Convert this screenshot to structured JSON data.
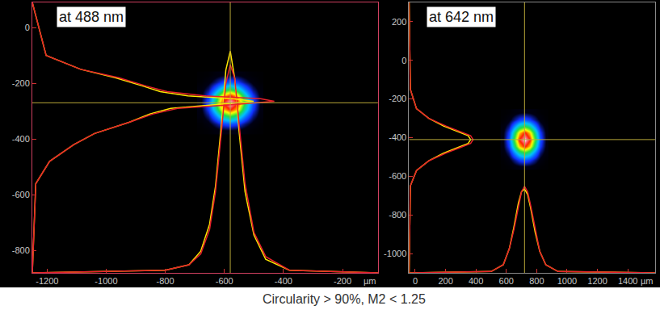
{
  "chart_data": [
    {
      "type": "beam_profile",
      "title": "at 488 nm",
      "xlabel": "µm",
      "xlim": [
        -1250,
        -80
      ],
      "ylim": [
        -880,
        90
      ],
      "xticks": [
        -1200,
        -1000,
        -800,
        -600,
        -400,
        -200
      ],
      "yticks": [
        0,
        -200,
        -400,
        -600,
        -800
      ],
      "grid": false,
      "center": [
        -580,
        -270
      ],
      "spot": {
        "x": [
          -680,
          -655,
          -630,
          -605,
          -580,
          -555,
          -530,
          -505,
          -480
        ],
        "y": [
          -370,
          -345,
          -320,
          -295,
          -270,
          -245,
          -220,
          -195,
          -170
        ],
        "zlim": [
          0,
          100
        ],
        "z": [
          [
            1,
            2,
            5,
            7,
            8,
            7,
            5,
            2,
            1
          ],
          [
            2,
            6,
            13,
            21,
            25,
            21,
            13,
            6,
            2
          ],
          [
            5,
            13,
            29,
            46,
            54,
            46,
            29,
            13,
            5
          ],
          [
            7,
            21,
            46,
            73,
            86,
            73,
            46,
            21,
            7
          ],
          [
            8,
            25,
            54,
            86,
            100,
            86,
            54,
            25,
            8
          ],
          [
            7,
            21,
            46,
            73,
            86,
            73,
            46,
            21,
            7
          ],
          [
            5,
            13,
            29,
            46,
            54,
            46,
            29,
            13,
            5
          ],
          [
            2,
            6,
            13,
            21,
            25,
            21,
            13,
            6,
            2
          ],
          [
            1,
            2,
            5,
            7,
            8,
            7,
            5,
            2,
            1
          ]
        ]
      },
      "profile_x": {
        "intensity_lim": [
          0,
          100
        ],
        "x": [
          -1250,
          -800,
          -720,
          -680,
          -650,
          -630,
          -610,
          -595,
          -580,
          -565,
          -550,
          -530,
          -500,
          -460,
          -380,
          -80
        ],
        "series": [
          {
            "color": "#ffe600",
            "values": [
              0,
              1,
              3,
              8,
              18,
              32,
              55,
              75,
              82,
              72,
              52,
              30,
              14,
              5,
              1,
              0
            ]
          },
          {
            "color": "#e8202a",
            "values": [
              0,
              1,
              3,
              7,
              16,
              30,
              52,
              70,
              77,
              72,
              55,
              33,
              15,
              6,
              1,
              0
            ]
          }
        ]
      },
      "profile_y": {
        "intensity_lim": [
          0,
          100
        ],
        "y": [
          90,
          -100,
          -150,
          -180,
          -210,
          -230,
          -245,
          -255,
          -265,
          -275,
          -290,
          -310,
          -340,
          -380,
          -420,
          -480,
          -560,
          -880
        ],
        "series": [
          {
            "color": "#ffe600",
            "values": [
              0,
              4,
              14,
              24,
              32,
              37,
              45,
              58,
              64,
              55,
              40,
              34,
              28,
              18,
              12,
              5,
              1,
              0
            ]
          },
          {
            "color": "#e8202a",
            "values": [
              0,
              4,
              14,
              25,
              33,
              39,
              50,
              66,
              70,
              60,
              42,
              35,
              28,
              18,
              12,
              5,
              1,
              0
            ]
          }
        ]
      }
    },
    {
      "type": "beam_profile",
      "title": "at 642 nm",
      "xlabel": "µm",
      "xlim": [
        -40,
        1580
      ],
      "ylim": [
        -1100,
        300
      ],
      "xticks": [
        0,
        200,
        400,
        600,
        800,
        1000,
        1200,
        1400
      ],
      "yticks": [
        200,
        0,
        -200,
        -400,
        -600,
        -800,
        -1000
      ],
      "grid": false,
      "center": [
        720,
        -410
      ],
      "spot": {
        "x": [
          580,
          615,
          650,
          685,
          720,
          755,
          790,
          825,
          860
        ],
        "y": [
          -550,
          -515,
          -480,
          -445,
          -410,
          -375,
          -340,
          -305,
          -270
        ],
        "zlim": [
          0,
          100
        ],
        "z": [
          [
            1,
            2,
            5,
            7,
            8,
            7,
            5,
            2,
            1
          ],
          [
            2,
            6,
            13,
            21,
            25,
            21,
            13,
            6,
            2
          ],
          [
            5,
            13,
            29,
            46,
            54,
            46,
            29,
            13,
            5
          ],
          [
            7,
            21,
            46,
            73,
            86,
            73,
            46,
            21,
            7
          ],
          [
            8,
            25,
            54,
            86,
            100,
            86,
            54,
            25,
            8
          ],
          [
            7,
            21,
            46,
            73,
            86,
            73,
            46,
            21,
            7
          ],
          [
            5,
            13,
            29,
            46,
            54,
            46,
            29,
            13,
            5
          ],
          [
            2,
            6,
            13,
            21,
            25,
            21,
            13,
            6,
            2
          ],
          [
            1,
            2,
            5,
            7,
            8,
            7,
            5,
            2,
            1
          ]
        ]
      },
      "profile_x": {
        "intensity_lim": [
          0,
          100
        ],
        "x": [
          -40,
          500,
          580,
          620,
          650,
          680,
          700,
          720,
          740,
          760,
          790,
          820,
          860,
          940,
          1580
        ],
        "series": [
          {
            "color": "#ffe600",
            "values": [
              0,
              0.5,
              3,
              9,
              17,
              26,
              30,
              31,
              29,
              24,
              15,
              8,
              3,
              0.5,
              0
            ]
          },
          {
            "color": "#e8202a",
            "values": [
              0,
              0.5,
              3,
              9,
              16,
              25,
              30,
              32,
              30,
              25,
              16,
              8,
              3,
              0.5,
              0
            ]
          }
        ]
      },
      "profile_y": {
        "intensity_lim": [
          0,
          100
        ],
        "y": [
          300,
          -150,
          -250,
          -300,
          -340,
          -370,
          -390,
          -410,
          -430,
          -450,
          -480,
          -520,
          -570,
          -650,
          -1100
        ],
        "series": [
          {
            "color": "#ffe600",
            "values": [
              0,
              0.5,
              3,
              8,
              14,
              20,
              24,
              25,
              24,
              20,
              14,
              8,
              3,
              0.5,
              0
            ]
          },
          {
            "color": "#e8202a",
            "values": [
              0,
              0.5,
              3,
              8,
              15,
              21,
              25,
              26,
              25,
              21,
              15,
              8,
              3,
              0.5,
              0
            ]
          }
        ]
      }
    }
  ],
  "caption": "Circularity > 90%, M2 < 1.25"
}
